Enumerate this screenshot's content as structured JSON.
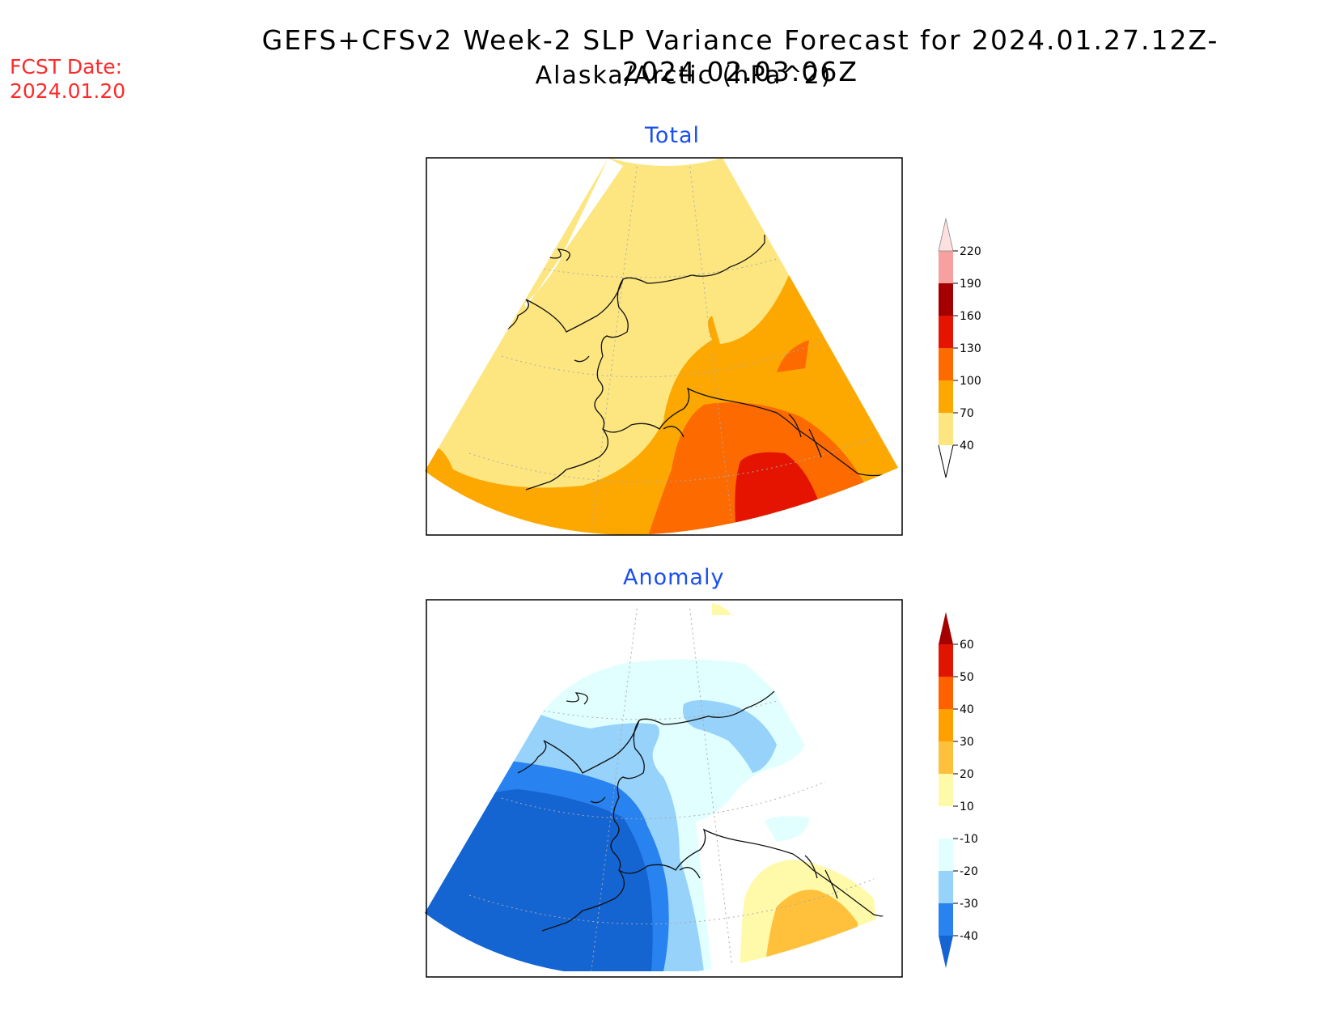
{
  "title": {
    "line1": "GEFS+CFSv2 Week-2 SLP Variance Forecast for 2024.01.27.12Z-2024.02.03.06Z",
    "line2": "Alaska/Arctic (hPa^2)"
  },
  "forecast": {
    "label": "FCST Date:",
    "date": "2024.01.20"
  },
  "panels": [
    {
      "id": "total",
      "title": "Total",
      "colorbar": {
        "levels": [
          "40",
          "70",
          "100",
          "130",
          "160",
          "190",
          "220"
        ],
        "colors": [
          "#fde680",
          "#fda800",
          "#fd6a00",
          "#e41400",
          "#a50000",
          "#f7a0a0",
          "#fde0e0"
        ]
      }
    },
    {
      "id": "anomaly",
      "title": "Anomaly",
      "colorbar": {
        "levels": [
          "-40",
          "-30",
          "-20",
          "-10",
          "10",
          "20",
          "30",
          "40",
          "50",
          "60"
        ],
        "colors": [
          "#1464d2",
          "#2882f0",
          "#96d2fa",
          "#e1ffff",
          "#ffffff",
          "#fffaaa",
          "#ffc03c",
          "#ffa000",
          "#ff6000",
          "#e11400",
          "#a50000"
        ]
      }
    }
  ]
}
